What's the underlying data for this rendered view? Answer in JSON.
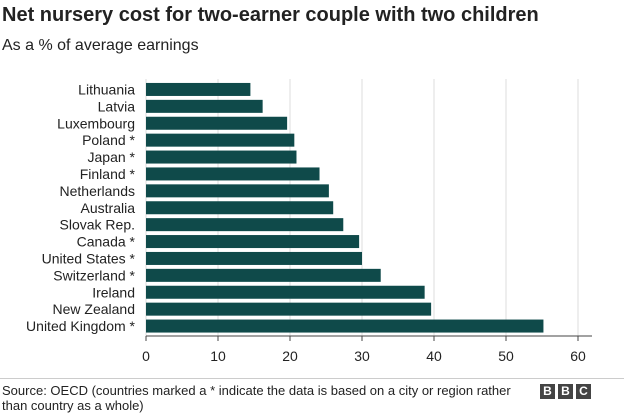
{
  "chart_data": {
    "type": "bar",
    "orientation": "horizontal",
    "title": "Net nursery cost for two-earner couple with two children",
    "subtitle": "As a % of average earnings",
    "categories": [
      "Lithuania",
      "Latvia",
      "Luxembourg",
      "Poland *",
      "Japan *",
      "Finland *",
      "Netherlands",
      "Australia",
      "Slovak Rep.",
      "Canada *",
      "United States *",
      "Switzerland *",
      "Ireland",
      "New Zealand",
      "United Kingdom *"
    ],
    "values": [
      14.5,
      16.2,
      19.6,
      20.6,
      20.9,
      24.1,
      25.4,
      26.0,
      27.4,
      29.6,
      30.0,
      32.6,
      38.7,
      39.6,
      55.2
    ],
    "xlim": [
      0,
      60
    ],
    "xticks": [
      0,
      10,
      20,
      30,
      40,
      50,
      60
    ],
    "grid": true,
    "bar_color": "#0f4a4a"
  },
  "footer": {
    "source": "Source: OECD (countries marked a * indicate the data is based on a city or region rather than country as a whole)",
    "logo": [
      "B",
      "B",
      "C"
    ]
  }
}
